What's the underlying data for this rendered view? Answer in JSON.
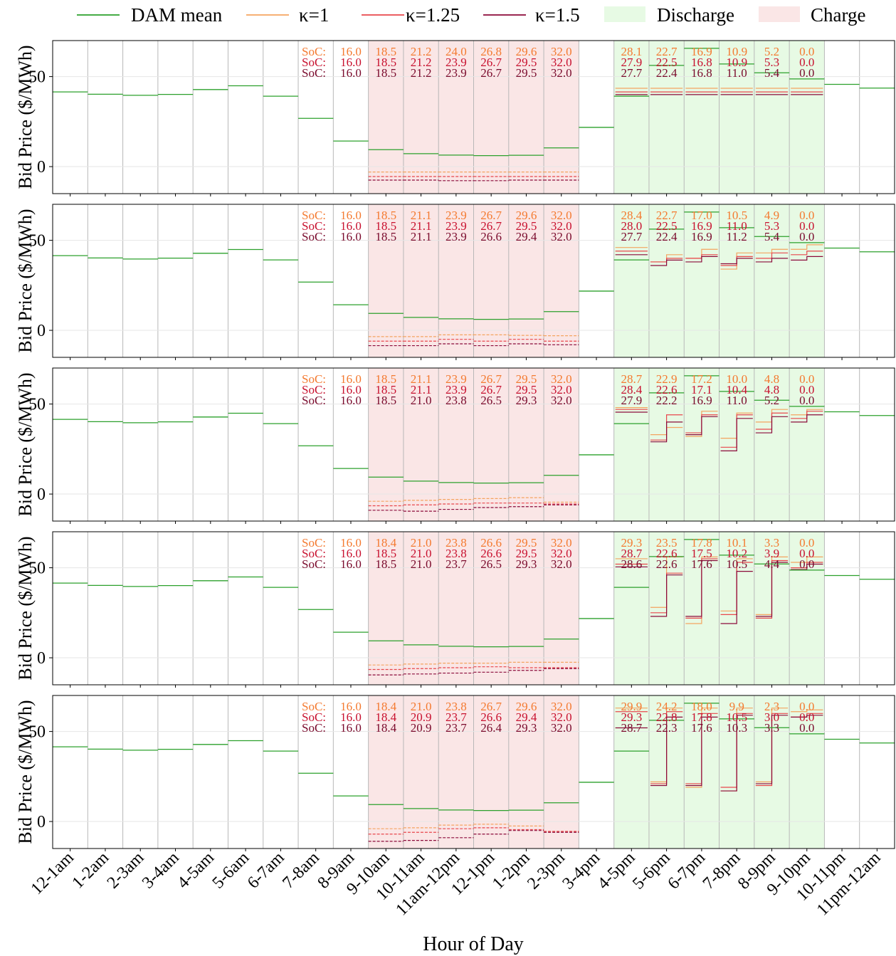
{
  "chart_data": {
    "type": "line",
    "ylabel": "Bid Price ($/MWh)",
    "xlabel": "Hour of Day",
    "ylim": [
      -15,
      70
    ],
    "yticks": [
      0,
      50
    ],
    "hours": [
      "12-1am",
      "1-2am",
      "2-3am",
      "3-4am",
      "4-5am",
      "5-6am",
      "6-7am",
      "7-8am",
      "8-9am",
      "9-10am",
      "10-11am",
      "11am-12pm",
      "12-1pm",
      "1-2pm",
      "2-3pm",
      "3-4pm",
      "4-5pm",
      "5-6pm",
      "6-7pm",
      "7-8pm",
      "8-9pm",
      "9-10pm",
      "10-11pm",
      "11pm-12am"
    ],
    "dam_mean": [
      41.5,
      40.2,
      39.6,
      40.1,
      42.8,
      44.9,
      39.1,
      26.8,
      14.2,
      9.4,
      7.2,
      6.4,
      6.1,
      6.3,
      10.4,
      21.8,
      39.1,
      56.2,
      65.7,
      57.0,
      52.1,
      48.7,
      45.7,
      43.6
    ],
    "charge_hours": [
      9,
      10,
      11,
      12,
      13,
      14
    ],
    "discharge_hours": [
      16,
      17,
      18,
      19,
      20,
      21
    ],
    "legend": [
      "DAM mean",
      "κ=1",
      "κ=1.25",
      "κ=1.5",
      "Discharge",
      "Charge"
    ],
    "colors": {
      "dam": "#2ca02c",
      "k1": "#f4a460",
      "k125": "#e8474c",
      "k15": "#8b0a3a",
      "discharge": "#e7fae4",
      "charge": "#fae6e6",
      "soc_k1": "#f47a30",
      "soc_k125": "#c8102e",
      "soc_k15": "#7a0a2c"
    },
    "soc_prefix": "SoC:",
    "soc_hours": [
      8,
      9,
      10,
      11,
      12,
      13,
      14,
      16,
      17,
      18,
      19,
      20,
      21
    ],
    "panels": [
      {
        "soc": [
          [
            "16.0",
            "18.5",
            "21.2",
            "24.0",
            "26.8",
            "29.6",
            "32.0",
            "28.1",
            "22.7",
            "16.9",
            "10.9",
            "5.2",
            "0.0"
          ],
          [
            "16.0",
            "18.5",
            "21.2",
            "23.9",
            "26.7",
            "29.5",
            "32.0",
            "27.9",
            "22.5",
            "16.8",
            "10.9",
            "5.3",
            "0.0"
          ],
          [
            "16.0",
            "18.5",
            "21.2",
            "23.9",
            "26.7",
            "29.5",
            "32.0",
            "27.7",
            "22.4",
            "16.8",
            "11.0",
            "5.4",
            "0.0"
          ]
        ],
        "charge_bids": [
          [
            -3.0,
            -3.0,
            -3.0,
            -3.0,
            -3.0,
            -3.0
          ],
          [
            -5.5,
            -5.5,
            -5.5,
            -5.5,
            -5.5,
            -5.5
          ],
          [
            -7.5,
            -7.5,
            -7.8,
            -7.8,
            -7.5,
            -7.5
          ]
        ],
        "discharge_bids": [
          [
            [
              43.5,
              43.5
            ],
            [
              43.5,
              43.5
            ],
            [
              43.5,
              43.5
            ],
            [
              43.5,
              43.5
            ],
            [
              43.5,
              43.5
            ],
            [
              43.5,
              43.5
            ]
          ],
          [
            [
              41.5,
              41.5
            ],
            [
              41.5,
              41.5
            ],
            [
              41.5,
              41.5
            ],
            [
              41.5,
              41.5
            ],
            [
              41.5,
              41.5
            ],
            [
              41.5,
              41.5
            ]
          ],
          [
            [
              40.0,
              40.0
            ],
            [
              40.0,
              40.0
            ],
            [
              40.0,
              40.0
            ],
            [
              40.0,
              40.0
            ],
            [
              40.0,
              40.0
            ],
            [
              40.0,
              40.0
            ]
          ]
        ]
      },
      {
        "soc": [
          [
            "16.0",
            "18.5",
            "21.1",
            "23.9",
            "26.7",
            "29.6",
            "32.0",
            "28.4",
            "22.7",
            "17.0",
            "10.5",
            "4.9",
            "0.0"
          ],
          [
            "16.0",
            "18.5",
            "21.1",
            "23.9",
            "26.7",
            "29.5",
            "32.0",
            "28.0",
            "22.5",
            "16.9",
            "11.0",
            "5.3",
            "0.0"
          ],
          [
            "16.0",
            "18.5",
            "21.1",
            "23.9",
            "26.6",
            "29.4",
            "32.0",
            "27.7",
            "22.4",
            "16.9",
            "11.2",
            "5.4",
            "0.0"
          ]
        ],
        "charge_bids": [
          [
            -3.5,
            -3.5,
            -2.5,
            -2.5,
            -2.8,
            -3.0
          ],
          [
            -6.0,
            -6.0,
            -5.0,
            -6.0,
            -5.0,
            -6.0
          ],
          [
            -8.5,
            -8.5,
            -7.5,
            -8.5,
            -7.5,
            -8.0
          ]
        ],
        "discharge_bids": [
          [
            [
              46.0,
              46.0
            ],
            [
              38.0,
              42.0
            ],
            [
              40.0,
              45.0
            ],
            [
              34.0,
              43.0
            ],
            [
              43.0,
              45.0
            ],
            [
              45.0,
              47.5
            ]
          ],
          [
            [
              44.0,
              44.0
            ],
            [
              38.0,
              40.0
            ],
            [
              40.0,
              42.0
            ],
            [
              36.0,
              41.0
            ],
            [
              40.0,
              43.0
            ],
            [
              42.0,
              44.0
            ]
          ],
          [
            [
              42.0,
              42.0
            ],
            [
              36.0,
              39.0
            ],
            [
              38.0,
              41.0
            ],
            [
              37.0,
              40.0
            ],
            [
              38.0,
              40.0
            ],
            [
              39.0,
              41.0
            ]
          ]
        ]
      },
      {
        "soc": [
          [
            "16.0",
            "18.5",
            "21.1",
            "23.9",
            "26.7",
            "29.5",
            "32.0",
            "28.7",
            "22.9",
            "17.2",
            "10.0",
            "4.8",
            "0.0"
          ],
          [
            "16.0",
            "18.5",
            "21.1",
            "23.9",
            "26.7",
            "29.5",
            "32.0",
            "28.4",
            "22.6",
            "17.1",
            "10.4",
            "4.8",
            "0.0"
          ],
          [
            "16.0",
            "18.5",
            "21.0",
            "23.8",
            "26.5",
            "29.3",
            "32.0",
            "27.9",
            "22.2",
            "16.9",
            "11.0",
            "5.2",
            "0.0"
          ]
        ],
        "charge_bids": [
          [
            -4.0,
            -3.5,
            -3.0,
            -2.5,
            -2.0,
            -4.5
          ],
          [
            -6.5,
            -6.0,
            -5.5,
            -5.0,
            -5.0,
            -5.5
          ],
          [
            -9.0,
            -9.5,
            -8.5,
            -7.5,
            -7.0,
            -6.0
          ]
        ],
        "discharge_bids": [
          [
            [
              48.0,
              48.0
            ],
            [
              33.0,
              37.0
            ],
            [
              32.0,
              46.0
            ],
            [
              31.0,
              45.0
            ],
            [
              40.0,
              47.0
            ],
            [
              44.0,
              47.0
            ]
          ],
          [
            [
              47.0,
              47.0
            ],
            [
              30.0,
              44.0
            ],
            [
              34.0,
              44.0
            ],
            [
              26.0,
              44.0
            ],
            [
              36.0,
              45.0
            ],
            [
              42.0,
              46.0
            ]
          ],
          [
            [
              45.5,
              45.5
            ],
            [
              29.0,
              40.0
            ],
            [
              33.0,
              43.0
            ],
            [
              24.0,
              42.0
            ],
            [
              34.0,
              43.0
            ],
            [
              40.0,
              44.0
            ]
          ]
        ]
      },
      {
        "soc": [
          [
            "16.0",
            "18.4",
            "21.0",
            "23.8",
            "26.6",
            "29.5",
            "32.0",
            "29.3",
            "23.5",
            "17.8",
            "10.1",
            "3.3",
            "0.0"
          ],
          [
            "16.0",
            "18.5",
            "21.0",
            "23.8",
            "26.6",
            "29.5",
            "32.0",
            "28.7",
            "22.6",
            "17.5",
            "10.2",
            "3.9",
            "0.0"
          ],
          [
            "16.0",
            "18.5",
            "21.0",
            "23.7",
            "26.5",
            "29.3",
            "32.0",
            "28.6",
            "22.6",
            "17.6",
            "10.5",
            "4.4",
            "0.0"
          ]
        ],
        "charge_bids": [
          [
            -4.0,
            -3.5,
            -3.0,
            -3.0,
            -2.5,
            -2.5
          ],
          [
            -6.5,
            -6.0,
            -5.5,
            -5.0,
            -5.5,
            -5.5
          ],
          [
            -9.5,
            -9.0,
            -8.5,
            -8.0,
            -7.0,
            -6.0
          ]
        ],
        "discharge_bids": [
          [
            [
              55.0,
              55.0
            ],
            [
              28.0,
              56.0
            ],
            [
              19.0,
              56.0
            ],
            [
              26.0,
              55.0
            ],
            [
              24.0,
              56.0
            ],
            [
              53.0,
              56.0
            ]
          ],
          [
            [
              52.0,
              52.0
            ],
            [
              25.0,
              47.0
            ],
            [
              22.0,
              55.0
            ],
            [
              24.0,
              53.0
            ],
            [
              22.0,
              54.0
            ],
            [
              50.0,
              53.0
            ]
          ],
          [
            [
              50.5,
              50.5
            ],
            [
              23.0,
              46.0
            ],
            [
              23.0,
              54.0
            ],
            [
              19.0,
              48.0
            ],
            [
              23.0,
              53.0
            ],
            [
              49.0,
              52.0
            ]
          ]
        ]
      },
      {
        "soc": [
          [
            "16.0",
            "18.4",
            "21.0",
            "23.8",
            "26.7",
            "29.6",
            "32.0",
            "29.9",
            "24.2",
            "18.0",
            "9.9",
            "2.3",
            "0.0"
          ],
          [
            "16.0",
            "18.4",
            "20.9",
            "23.7",
            "26.6",
            "29.4",
            "32.0",
            "29.3",
            "22.8",
            "17.8",
            "10.5",
            "3.0",
            "0.0"
          ],
          [
            "16.0",
            "18.4",
            "20.9",
            "23.7",
            "26.4",
            "29.3",
            "32.0",
            "28.7",
            "22.3",
            "17.6",
            "10.3",
            "3.3",
            "0.0"
          ]
        ],
        "charge_bids": [
          [
            -4.0,
            -3.5,
            -2.0,
            -1.5,
            -2.5,
            -5.5
          ],
          [
            -7.0,
            -6.0,
            -4.0,
            -3.5,
            -4.5,
            -5.5
          ],
          [
            -11.0,
            -10.5,
            -9.0,
            -7.0,
            -5.0,
            -6.0
          ]
        ],
        "discharge_bids": [
          [
            [
              63.0,
              63.0
            ],
            [
              22.0,
              63.0
            ],
            [
              19.0,
              63.0
            ],
            [
              17.0,
              63.0
            ],
            [
              22.0,
              63.0
            ],
            [
              61.0,
              62.0
            ]
          ],
          [
            [
              61.0,
              61.0
            ],
            [
              21.0,
              61.0
            ],
            [
              21.0,
              60.0
            ],
            [
              19.0,
              60.0
            ],
            [
              20.0,
              60.0
            ],
            [
              58.0,
              60.0
            ]
          ],
          [
            [
              52.0,
              52.0
            ],
            [
              20.0,
              58.0
            ],
            [
              20.0,
              58.0
            ],
            [
              17.0,
              59.0
            ],
            [
              21.0,
              59.0
            ],
            [
              58.0,
              59.0
            ]
          ]
        ]
      }
    ]
  }
}
